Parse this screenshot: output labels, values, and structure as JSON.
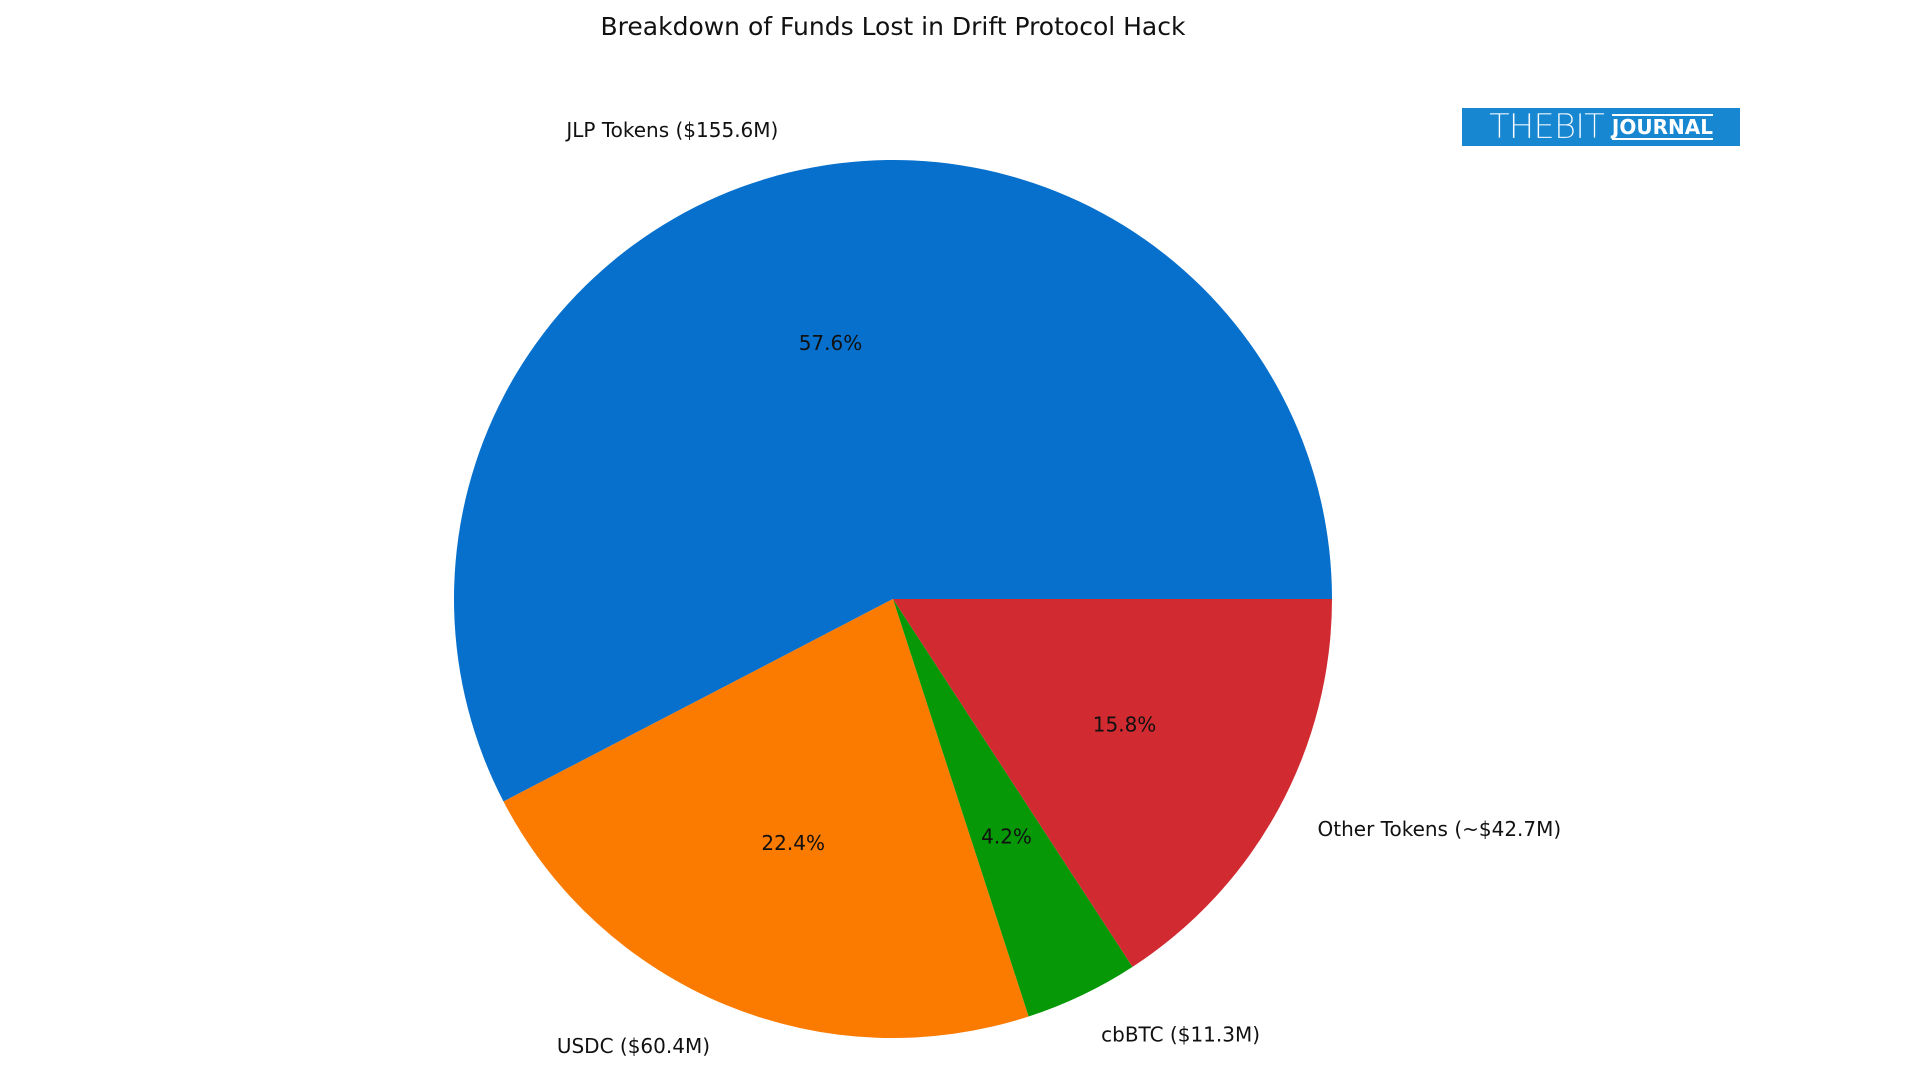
{
  "chart_data": {
    "type": "pie",
    "title": "Breakdown of Funds Lost in Drift Protocol Hack",
    "start_angle": 0,
    "direction": "counterclockwise",
    "slices": [
      {
        "label": "JLP Tokens ($155.6M)",
        "value": 155.6,
        "pct_label": "57.6%",
        "color": "#0670cc"
      },
      {
        "label": "USDC ($60.4M)",
        "value": 60.4,
        "pct_label": "22.4%",
        "color": "#fb7a00"
      },
      {
        "label": "cbBTC ($11.3M)",
        "value": 11.3,
        "pct_label": "4.2%",
        "color": "#069806"
      },
      {
        "label": "Other Tokens (~$42.7M)",
        "value": 42.7,
        "pct_label": "15.8%",
        "color": "#d12a31"
      }
    ]
  },
  "logo": {
    "text_main": "THEBIT",
    "text_sub": "JOURNAL",
    "color": "#1787d2"
  }
}
